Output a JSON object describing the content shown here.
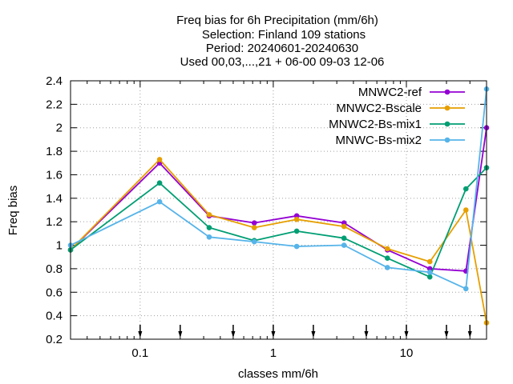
{
  "chart_data": {
    "type": "line",
    "title_lines": [
      "Freq bias  for 6h Precipitation (mm/6h)",
      "Selection: Finland    109 stations",
      "Period: 20240601-20240630",
      "Used 00,03,...,21 + 06-00 09-03 12-06"
    ],
    "xlabel": "classes mm/6h",
    "ylabel": "Freq bias",
    "x_scale": "log",
    "xlim": [
      0.03,
      40
    ],
    "ylim": [
      0.2,
      2.4
    ],
    "x_ticks": [
      0.1,
      1,
      10
    ],
    "x_tick_labels": [
      "0.1",
      "1",
      "10"
    ],
    "y_ticks": [
      0.2,
      0.4,
      0.6,
      0.8,
      1,
      1.2,
      1.4,
      1.6,
      1.8,
      2,
      2.2,
      2.4
    ],
    "y_tick_labels": [
      "0.2",
      "0.4",
      "0.6",
      "0.8",
      "1",
      "1.2",
      "1.4",
      "1.6",
      "1.8",
      "2",
      "2.2",
      "2.4"
    ],
    "class_markers": [
      0.1,
      0.2,
      0.5,
      1,
      2,
      5,
      10,
      20,
      30
    ],
    "grid": true,
    "legend_position": "top-right",
    "x": [
      0.03,
      0.14,
      0.33,
      0.72,
      1.5,
      3.4,
      7.2,
      15,
      28,
      40
    ],
    "series": [
      {
        "name": "MNWC2-ref",
        "color": "#9400d3",
        "values": [
          0.96,
          1.7,
          1.25,
          1.19,
          1.25,
          1.19,
          0.96,
          0.8,
          0.78,
          2.0
        ]
      },
      {
        "name": "MNWC2-Bscale",
        "color": "#e69f00",
        "values": [
          0.96,
          1.73,
          1.26,
          1.15,
          1.22,
          1.16,
          0.97,
          0.86,
          1.3,
          0.34
        ]
      },
      {
        "name": "MNWC2-Bs-mix1",
        "color": "#009e73",
        "values": [
          0.96,
          1.53,
          1.15,
          1.04,
          1.12,
          1.06,
          0.89,
          0.73,
          1.48,
          1.66
        ]
      },
      {
        "name": "MNWC-Bs-mix2",
        "color": "#56b4e9",
        "values": [
          1.0,
          1.37,
          1.07,
          1.03,
          0.99,
          1.0,
          0.81,
          0.77,
          0.63,
          2.33
        ]
      }
    ]
  }
}
